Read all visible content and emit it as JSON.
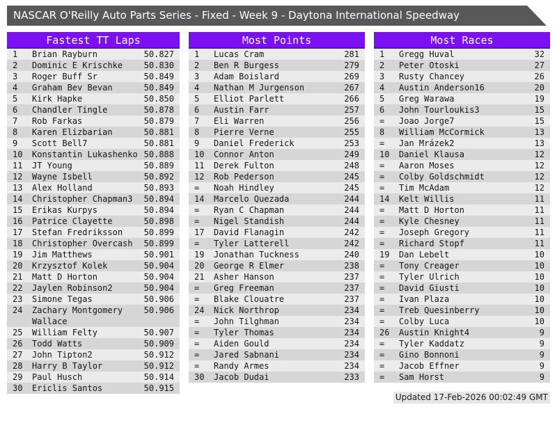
{
  "title_bar": {
    "title": "NASCAR O'Reilly Auto Parts Series - Fixed - Week 9 - Daytona International Speedway"
  },
  "colors": {
    "accent_purple": "#7b11f2",
    "title_bar_bg": "#58585a",
    "row_odd": "#ebebeb",
    "row_even": "#d6d6d6"
  },
  "tables": [
    {
      "header": "Fastest TT Laps",
      "rows": [
        {
          "rank": "1",
          "name": "Brian Rayburn",
          "value": "50.827"
        },
        {
          "rank": "2",
          "name": "Dominic E Krischke",
          "value": "50.830"
        },
        {
          "rank": "3",
          "name": "Roger Buff Sr",
          "value": "50.849"
        },
        {
          "rank": "4",
          "name": "Graham Bev Bevan",
          "value": "50.849"
        },
        {
          "rank": "5",
          "name": "Kirk Hapke",
          "value": "50.850"
        },
        {
          "rank": "6",
          "name": "Chandler Tingle",
          "value": "50.878"
        },
        {
          "rank": "7",
          "name": "Rob Farkas",
          "value": "50.879"
        },
        {
          "rank": "8",
          "name": "Karen Elizbarian",
          "value": "50.881"
        },
        {
          "rank": "9",
          "name": "Scott Bell7",
          "value": "50.881"
        },
        {
          "rank": "10",
          "name": "Konstantin Lukashenko",
          "value": "50.888"
        },
        {
          "rank": "11",
          "name": "JT Young",
          "value": "50.889"
        },
        {
          "rank": "12",
          "name": "Wayne Isbell",
          "value": "50.892"
        },
        {
          "rank": "13",
          "name": "Alex Holland",
          "value": "50.893"
        },
        {
          "rank": "14",
          "name": "Christopher Chapman3",
          "value": "50.894"
        },
        {
          "rank": "15",
          "name": "Erikas Kurpys",
          "value": "50.894"
        },
        {
          "rank": "16",
          "name": "Patrice Clayette",
          "value": "50.898"
        },
        {
          "rank": "17",
          "name": "Stefan Fredriksson",
          "value": "50.899"
        },
        {
          "rank": "18",
          "name": "Christopher Overcash",
          "value": "50.899"
        },
        {
          "rank": "19",
          "name": "Jim Matthews",
          "value": "50.901"
        },
        {
          "rank": "20",
          "name": "Krzysztof Kolek",
          "value": "50.904"
        },
        {
          "rank": "21",
          "name": "Matt D Horton",
          "value": "50.904"
        },
        {
          "rank": "22",
          "name": "Jaylen Robinson2",
          "value": "50.904"
        },
        {
          "rank": "23",
          "name": "Simone Tegas",
          "value": "50.906"
        },
        {
          "rank": "24",
          "name": "Zachary Montgomery Wallace",
          "value": "50.906"
        },
        {
          "rank": "25",
          "name": "William Felty",
          "value": "50.907"
        },
        {
          "rank": "26",
          "name": "Todd Watts",
          "value": "50.909"
        },
        {
          "rank": "27",
          "name": "John Tipton2",
          "value": "50.912"
        },
        {
          "rank": "28",
          "name": "Harry B Taylor",
          "value": "50.912"
        },
        {
          "rank": "29",
          "name": "Paul Husch",
          "value": "50.914"
        },
        {
          "rank": "30",
          "name": "Ericlis Santos",
          "value": "50.915"
        }
      ]
    },
    {
      "header": "Most Points",
      "rows": [
        {
          "rank": "1",
          "name": "Lucas Cram",
          "value": "281"
        },
        {
          "rank": "2",
          "name": "Ben R Burgess",
          "value": "279"
        },
        {
          "rank": "3",
          "name": "Adam Boislard",
          "value": "269"
        },
        {
          "rank": "4",
          "name": "Nathan M Jurgenson",
          "value": "267"
        },
        {
          "rank": "5",
          "name": "Elliot Parlett",
          "value": "266"
        },
        {
          "rank": "6",
          "name": "Austin Farr",
          "value": "257"
        },
        {
          "rank": "7",
          "name": "Eli Warren",
          "value": "256"
        },
        {
          "rank": "8",
          "name": "Pierre Verne",
          "value": "255"
        },
        {
          "rank": "9",
          "name": "Daniel Frederick",
          "value": "253"
        },
        {
          "rank": "10",
          "name": "Connor Anton",
          "value": "249"
        },
        {
          "rank": "11",
          "name": "Derek Fulton",
          "value": "248"
        },
        {
          "rank": "12",
          "name": "Rob Pederson",
          "value": "245"
        },
        {
          "rank": "=",
          "name": "Noah Hindley",
          "value": "245"
        },
        {
          "rank": "14",
          "name": "Marcelo Quezada",
          "value": "244"
        },
        {
          "rank": "=",
          "name": "Ryan C Chapman",
          "value": "244"
        },
        {
          "rank": "=",
          "name": "Nigel Standish",
          "value": "244"
        },
        {
          "rank": "17",
          "name": "David Flanagin",
          "value": "242"
        },
        {
          "rank": "=",
          "name": "Tyler Latterell",
          "value": "242"
        },
        {
          "rank": "19",
          "name": "Jonathan Tuckness",
          "value": "240"
        },
        {
          "rank": "20",
          "name": "George R Elmer",
          "value": "238"
        },
        {
          "rank": "21",
          "name": "Asher Hanson",
          "value": "237"
        },
        {
          "rank": "=",
          "name": "Greg Freeman",
          "value": "237"
        },
        {
          "rank": "=",
          "name": "Blake Clouatre",
          "value": "237"
        },
        {
          "rank": "24",
          "name": "Nick Northrop",
          "value": "234"
        },
        {
          "rank": "=",
          "name": "John Tilghman",
          "value": "234"
        },
        {
          "rank": "=",
          "name": "Tyler Thomas",
          "value": "234"
        },
        {
          "rank": "=",
          "name": "Aiden Gould",
          "value": "234"
        },
        {
          "rank": "=",
          "name": "Jared Sabnani",
          "value": "234"
        },
        {
          "rank": "=",
          "name": "Randy Armes",
          "value": "234"
        },
        {
          "rank": "30",
          "name": "Jacob Dudai",
          "value": "233"
        }
      ]
    },
    {
      "header": "Most Races",
      "rows": [
        {
          "rank": "1",
          "name": "Gregg Huval",
          "value": "32"
        },
        {
          "rank": "2",
          "name": "Peter Otoski",
          "value": "27"
        },
        {
          "rank": "3",
          "name": "Rusty Chancey",
          "value": "26"
        },
        {
          "rank": "4",
          "name": "Austin Anderson16",
          "value": "20"
        },
        {
          "rank": "5",
          "name": "Greg Warawa",
          "value": "19"
        },
        {
          "rank": "6",
          "name": "John Tourloukis3",
          "value": "15"
        },
        {
          "rank": "=",
          "name": "Joao Jorge7",
          "value": "15"
        },
        {
          "rank": "8",
          "name": "William McCormick",
          "value": "13"
        },
        {
          "rank": "=",
          "name": "Jan Mrázek2",
          "value": "13"
        },
        {
          "rank": "10",
          "name": "Daniel Klausa",
          "value": "12"
        },
        {
          "rank": "=",
          "name": "Aaron Moses",
          "value": "12"
        },
        {
          "rank": "=",
          "name": "Colby Goldschmidt",
          "value": "12"
        },
        {
          "rank": "=",
          "name": "Tim McAdam",
          "value": "12"
        },
        {
          "rank": "14",
          "name": "Kelt Willis",
          "value": "11"
        },
        {
          "rank": "=",
          "name": "Matt D Horton",
          "value": "11"
        },
        {
          "rank": "=",
          "name": "Kyle Chesney",
          "value": "11"
        },
        {
          "rank": "=",
          "name": "Joseph Gregory",
          "value": "11"
        },
        {
          "rank": "=",
          "name": "Richard Stopf",
          "value": "11"
        },
        {
          "rank": "19",
          "name": "Dan Lebelt",
          "value": "10"
        },
        {
          "rank": "=",
          "name": "Tony Creager",
          "value": "10"
        },
        {
          "rank": "=",
          "name": "Tyler Ulrich",
          "value": "10"
        },
        {
          "rank": "=",
          "name": "David Giusti",
          "value": "10"
        },
        {
          "rank": "=",
          "name": "Ivan Plaza",
          "value": "10"
        },
        {
          "rank": "=",
          "name": "Treb Quesinberry",
          "value": "10"
        },
        {
          "rank": "=",
          "name": "Colby Luca",
          "value": "10"
        },
        {
          "rank": "26",
          "name": "Austin Knight4",
          "value": "9"
        },
        {
          "rank": "=",
          "name": "Tyler Kaddatz",
          "value": "9"
        },
        {
          "rank": "=",
          "name": "Gino Bonnoni",
          "value": "9"
        },
        {
          "rank": "=",
          "name": "Jacob Effner",
          "value": "9"
        },
        {
          "rank": "=",
          "name": "Sam Horst",
          "value": "9"
        }
      ]
    }
  ],
  "footer": {
    "updated": "Updated 17-Feb-2026 00:02:49 GMT"
  }
}
